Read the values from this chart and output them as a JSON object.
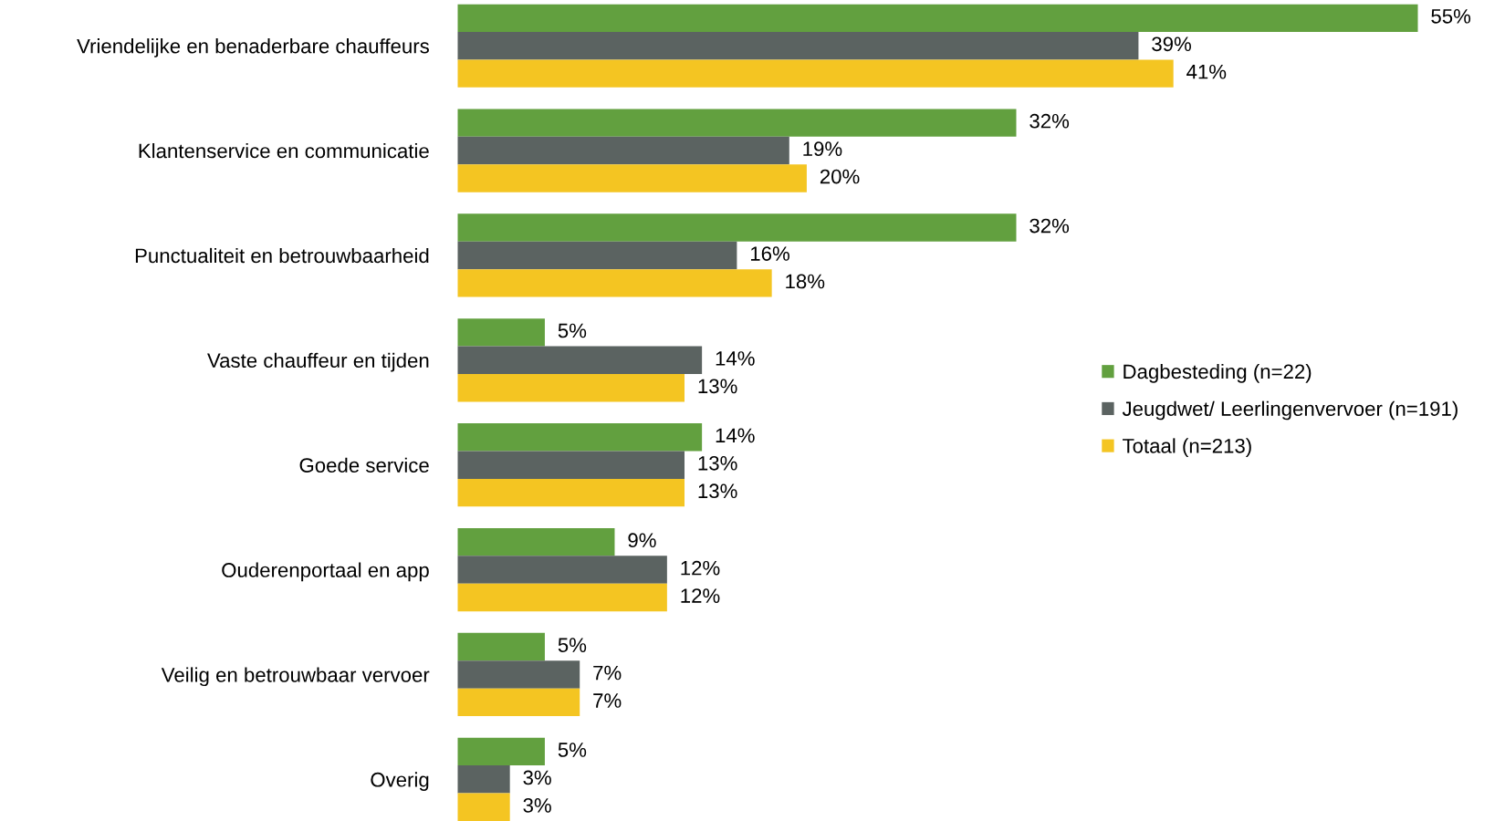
{
  "chart_data": {
    "type": "bar",
    "orientation": "horizontal",
    "categories": [
      "Vriendelijke en benaderbare chauffeurs",
      "Klantenservice en communicatie",
      "Punctualiteit en betrouwbaarheid",
      "Vaste chauffeur en tijden",
      "Goede service",
      "Ouderenportaal en app",
      "Veilig en betrouwbaar vervoer",
      "Overig"
    ],
    "series": [
      {
        "name": "Dagbesteding (n=22)",
        "color": "#62a03f",
        "values": [
          55,
          32,
          32,
          5,
          14,
          9,
          5,
          5
        ],
        "value_labels": [
          "55%",
          "32%",
          "32%",
          "5%",
          "14%",
          "9%",
          "5%",
          "5%"
        ]
      },
      {
        "name": "Jeugdwet/ Leerlingenvervoer (n=191)",
        "color": "#5b6361",
        "values": [
          39,
          19,
          16,
          14,
          13,
          12,
          7,
          3
        ],
        "value_labels": [
          "39%",
          "19%",
          "16%",
          "14%",
          "13%",
          "12%",
          "7%",
          "3%"
        ]
      },
      {
        "name": "Totaal (n=213)",
        "color": "#f4c522",
        "values": [
          41,
          20,
          18,
          13,
          13,
          12,
          7,
          3
        ],
        "value_labels": [
          "41%",
          "20%",
          "18%",
          "13%",
          "13%",
          "12%",
          "7%",
          "3%"
        ]
      }
    ],
    "legend": "right"
  }
}
